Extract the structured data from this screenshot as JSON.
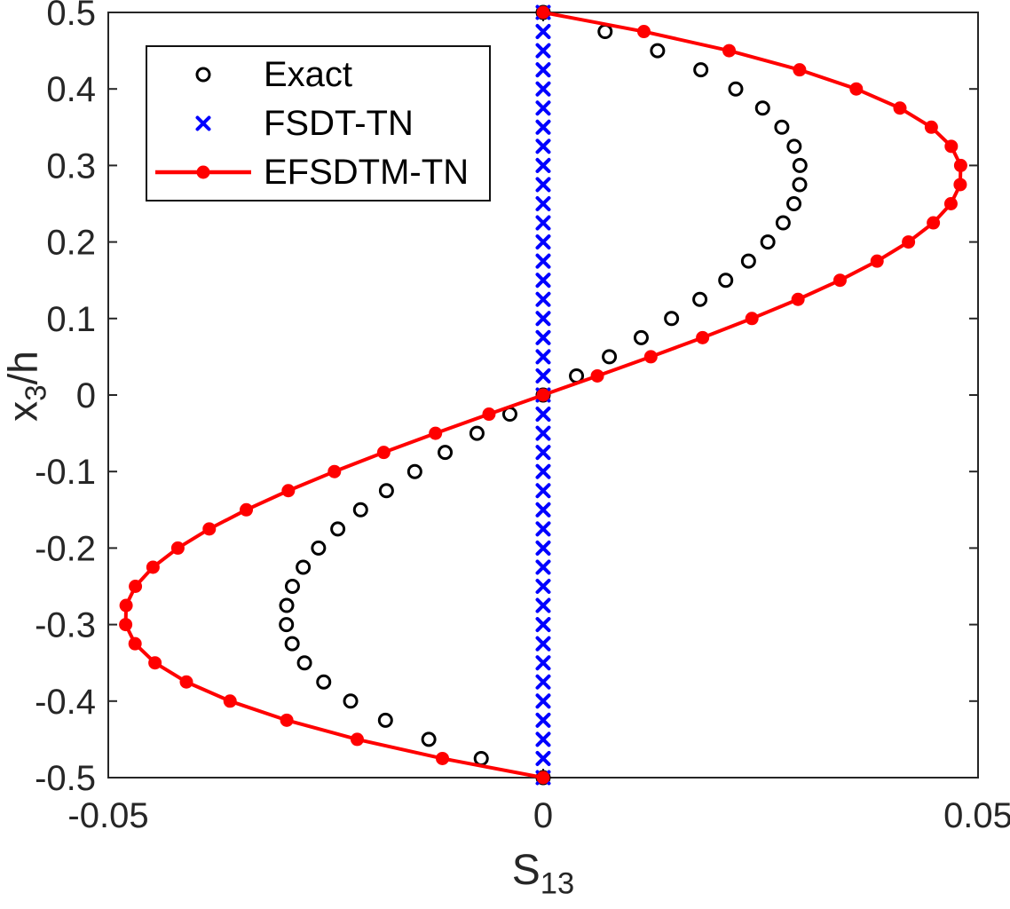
{
  "figure": {
    "background": "#ffffff",
    "axis_color": "#262626",
    "legend_position": "top-left-inside"
  },
  "chart_data": {
    "type": "scatter",
    "title": "",
    "xlabel": "S_13",
    "xlabel_main": "S",
    "xlabel_sub": "13",
    "ylabel": "x_3/h",
    "ylabel_main": "x",
    "ylabel_sub": "3",
    "ylabel_suffix": "/h",
    "xlim": [
      -0.05,
      0.05
    ],
    "ylim": [
      -0.5,
      0.5
    ],
    "xticks": [
      "-0.05",
      "0",
      "0.05"
    ],
    "yticks": [
      "0.5",
      "0.4",
      "0.3",
      "0.2",
      "0.1",
      "0",
      "-0.1",
      "-0.2",
      "-0.3",
      "-0.4",
      "-0.5"
    ],
    "grid": false,
    "z": [
      -0.5,
      -0.475,
      -0.45,
      -0.425,
      -0.4,
      -0.375,
      -0.35,
      -0.325,
      -0.3,
      -0.275,
      -0.25,
      -0.225,
      -0.2,
      -0.175,
      -0.15,
      -0.125,
      -0.1,
      -0.075,
      -0.05,
      -0.025,
      0,
      0.025,
      0.05,
      0.075,
      0.1,
      0.125,
      0.15,
      0.175,
      0.2,
      0.225,
      0.25,
      0.275,
      0.3,
      0.325,
      0.35,
      0.375,
      0.4,
      0.425,
      0.45,
      0.475,
      0.5
    ],
    "series": [
      {
        "name": "Exact",
        "marker": "open-circle",
        "line": "none",
        "color": "#000000",
        "S": [
          0,
          -0.00712,
          -0.01315,
          -0.01813,
          -0.02214,
          -0.02523,
          -0.02744,
          -0.02886,
          -0.02952,
          -0.02949,
          -0.02883,
          -0.02759,
          -0.02583,
          -0.02361,
          -0.02099,
          -0.01802,
          -0.01476,
          -0.01127,
          -0.00761,
          -0.00383,
          0,
          0.00383,
          0.00761,
          0.01127,
          0.01476,
          0.01802,
          0.02099,
          0.02361,
          0.02583,
          0.02759,
          0.02883,
          0.02949,
          0.02952,
          0.02886,
          0.02744,
          0.02523,
          0.02214,
          0.01813,
          0.01315,
          0.00712,
          0
        ]
      },
      {
        "name": "FSDT-TN",
        "marker": "x",
        "line": "none",
        "color": "#0000ff",
        "S": [
          0,
          0,
          0,
          0,
          0,
          0,
          0,
          0,
          0,
          0,
          0,
          0,
          0,
          0,
          0,
          0,
          0,
          0,
          0,
          0,
          0,
          0,
          0,
          0,
          0,
          0,
          0,
          0,
          0,
          0,
          0,
          0,
          0,
          0,
          0,
          0,
          0,
          0,
          0,
          0,
          0
        ]
      },
      {
        "name": "EFSDTM-TN",
        "marker": "filled-circle",
        "line": "solid",
        "color": "#ff0000",
        "S": [
          0,
          -0.01158,
          -0.02138,
          -0.02948,
          -0.036,
          -0.04102,
          -0.04463,
          -0.04692,
          -0.048,
          -0.04795,
          -0.04688,
          -0.04486,
          -0.042,
          -0.03839,
          -0.03413,
          -0.0293,
          -0.024,
          -0.01833,
          -0.01238,
          -0.00623,
          0,
          0.00623,
          0.01238,
          0.01833,
          0.024,
          0.0293,
          0.03413,
          0.03839,
          0.042,
          0.04486,
          0.04688,
          0.04795,
          0.048,
          0.04692,
          0.04463,
          0.04102,
          0.036,
          0.02948,
          0.02138,
          0.01158,
          0
        ]
      }
    ]
  }
}
